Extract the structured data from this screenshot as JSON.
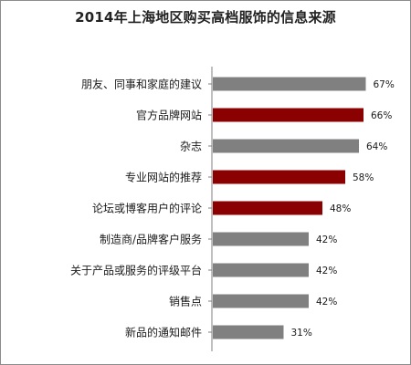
{
  "chart_data": {
    "type": "bar",
    "orientation": "horizontal",
    "title": "2014年上海地区购买高档服饰的信息来源",
    "categories": [
      "朋友、同事和家庭的建议",
      "官方品牌网站",
      "杂志",
      "专业网站的推荐",
      "论坛或博客用户的评论",
      "制造商/品牌客户服务",
      "关于产品或服务的评级平台",
      "销售点",
      "新品的通知邮件"
    ],
    "values": [
      67,
      66,
      64,
      58,
      48,
      42,
      42,
      42,
      31
    ],
    "value_labels": [
      "67%",
      "66%",
      "64%",
      "58%",
      "48%",
      "42%",
      "42%",
      "42%",
      "31%"
    ],
    "highlighted": [
      false,
      true,
      false,
      true,
      true,
      false,
      false,
      false,
      false
    ],
    "xlim": [
      0,
      100
    ],
    "grid": false,
    "colors": {
      "default": "#808080",
      "highlight": "#8b0000",
      "axis": "#7f7f7f"
    }
  }
}
